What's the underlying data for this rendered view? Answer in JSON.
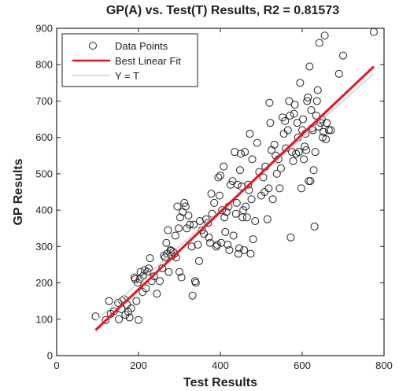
{
  "chart_data": {
    "type": "scatter",
    "title": "GP(A) vs. Test(T) Results, R2 = 0.81573",
    "xlabel": "Test Results",
    "ylabel": "GP Results",
    "xlim": [
      0,
      800
    ],
    "ylim": [
      0,
      900
    ],
    "xticks": [
      "0",
      "200",
      "400",
      "600",
      "800"
    ],
    "yticks": [
      "0",
      "100",
      "200",
      "300",
      "400",
      "500",
      "600",
      "700",
      "800",
      "900"
    ],
    "grid": false,
    "legend_position": "top-left",
    "series": [
      {
        "name": "Data Points",
        "kind": "points",
        "marker": "open-circle",
        "color": "#222222",
        "points": [
          [
            95,
            108
          ],
          [
            120,
            98
          ],
          [
            128,
            150
          ],
          [
            132,
            115
          ],
          [
            140,
            122
          ],
          [
            150,
            145
          ],
          [
            152,
            100
          ],
          [
            158,
            128
          ],
          [
            160,
            150
          ],
          [
            165,
            155
          ],
          [
            168,
            112
          ],
          [
            172,
            140
          ],
          [
            175,
            120
          ],
          [
            178,
            105
          ],
          [
            182,
            130
          ],
          [
            190,
            215
          ],
          [
            192,
            210
          ],
          [
            195,
            150
          ],
          [
            198,
            200
          ],
          [
            200,
            98
          ],
          [
            203,
            210
          ],
          [
            205,
            230
          ],
          [
            210,
            175
          ],
          [
            212,
            220
          ],
          [
            215,
            235
          ],
          [
            218,
            185
          ],
          [
            222,
            230
          ],
          [
            225,
            240
          ],
          [
            228,
            268
          ],
          [
            232,
            205
          ],
          [
            238,
            218
          ],
          [
            245,
            170
          ],
          [
            252,
            205
          ],
          [
            258,
            240
          ],
          [
            262,
            275
          ],
          [
            265,
            270
          ],
          [
            268,
            310
          ],
          [
            270,
            280
          ],
          [
            272,
            345
          ],
          [
            274,
            230
          ],
          [
            278,
            290
          ],
          [
            280,
            288
          ],
          [
            282,
            275
          ],
          [
            285,
            285
          ],
          [
            288,
            280
          ],
          [
            290,
            330
          ],
          [
            292,
            270
          ],
          [
            295,
            410
          ],
          [
            298,
            350
          ],
          [
            300,
            230
          ],
          [
            302,
            380
          ],
          [
            305,
            215
          ],
          [
            308,
            395
          ],
          [
            312,
            420
          ],
          [
            315,
            410
          ],
          [
            318,
            350
          ],
          [
            322,
            385
          ],
          [
            325,
            360
          ],
          [
            330,
            300
          ],
          [
            332,
            165
          ],
          [
            335,
            360
          ],
          [
            338,
            205
          ],
          [
            340,
            200
          ],
          [
            345,
            305
          ],
          [
            348,
            260
          ],
          [
            350,
            370
          ],
          [
            355,
            345
          ],
          [
            360,
            335
          ],
          [
            365,
            375
          ],
          [
            370,
            365
          ],
          [
            372,
            325
          ],
          [
            375,
            310
          ],
          [
            378,
            445
          ],
          [
            380,
            390
          ],
          [
            385,
            420
          ],
          [
            390,
            300
          ],
          [
            392,
            305
          ],
          [
            395,
            490
          ],
          [
            398,
            440
          ],
          [
            400,
            495
          ],
          [
            402,
            310
          ],
          [
            404,
            400
          ],
          [
            408,
            520
          ],
          [
            410,
            380
          ],
          [
            412,
            340
          ],
          [
            415,
            395
          ],
          [
            418,
            305
          ],
          [
            420,
            410
          ],
          [
            422,
            290
          ],
          [
            425,
            470
          ],
          [
            430,
            480
          ],
          [
            432,
            330
          ],
          [
            435,
            560
          ],
          [
            438,
            390
          ],
          [
            440,
            420
          ],
          [
            442,
            470
          ],
          [
            444,
            280
          ],
          [
            446,
            295
          ],
          [
            448,
            510
          ],
          [
            450,
            555
          ],
          [
            452,
            465
          ],
          [
            454,
            380
          ],
          [
            456,
            400
          ],
          [
            458,
            290
          ],
          [
            460,
            560
          ],
          [
            462,
            410
          ],
          [
            465,
            380
          ],
          [
            468,
            470
          ],
          [
            470,
            455
          ],
          [
            472,
            610
          ],
          [
            474,
            280
          ],
          [
            476,
            430
          ],
          [
            478,
            540
          ],
          [
            480,
            320
          ],
          [
            485,
            370
          ],
          [
            490,
            585
          ],
          [
            495,
            505
          ],
          [
            500,
            440
          ],
          [
            505,
            490
          ],
          [
            508,
            450
          ],
          [
            510,
            520
          ],
          [
            515,
            375
          ],
          [
            518,
            460
          ],
          [
            520,
            695
          ],
          [
            522,
            640
          ],
          [
            525,
            565
          ],
          [
            528,
            430
          ],
          [
            532,
            580
          ],
          [
            535,
            550
          ],
          [
            538,
            500
          ],
          [
            542,
            540
          ],
          [
            545,
            460
          ],
          [
            548,
            515
          ],
          [
            552,
            655
          ],
          [
            555,
            610
          ],
          [
            558,
            645
          ],
          [
            560,
            570
          ],
          [
            565,
            620
          ],
          [
            568,
            700
          ],
          [
            570,
            660
          ],
          [
            572,
            325
          ],
          [
            575,
            560
          ],
          [
            578,
            535
          ],
          [
            580,
            665
          ],
          [
            582,
            690
          ],
          [
            585,
            555
          ],
          [
            588,
            640
          ],
          [
            590,
            600
          ],
          [
            592,
            560
          ],
          [
            595,
            750
          ],
          [
            598,
            460
          ],
          [
            600,
            620
          ],
          [
            602,
            650
          ],
          [
            604,
            540
          ],
          [
            606,
            575
          ],
          [
            608,
            610
          ],
          [
            610,
            565
          ],
          [
            612,
            700
          ],
          [
            614,
            710
          ],
          [
            616,
            480
          ],
          [
            618,
            795
          ],
          [
            620,
            480
          ],
          [
            622,
            675
          ],
          [
            624,
            625
          ],
          [
            626,
            620
          ],
          [
            628,
            510
          ],
          [
            630,
            355
          ],
          [
            632,
            560
          ],
          [
            634,
            660
          ],
          [
            636,
            700
          ],
          [
            638,
            730
          ],
          [
            640,
            630
          ],
          [
            642,
            860
          ],
          [
            645,
            640
          ],
          [
            648,
            650
          ],
          [
            650,
            600
          ],
          [
            652,
            615
          ],
          [
            655,
            880
          ],
          [
            658,
            595
          ],
          [
            660,
            640
          ],
          [
            665,
            620
          ],
          [
            670,
            620
          ],
          [
            690,
            775
          ],
          [
            700,
            825
          ],
          [
            775,
            890
          ]
        ]
      },
      {
        "name": "Best Linear Fit",
        "kind": "line",
        "color": "#e8161b",
        "points": [
          [
            95,
            70
          ],
          [
            775,
            795
          ]
        ]
      },
      {
        "name": "Y = T",
        "kind": "line",
        "color": "#c8c8c8",
        "points": [
          [
            95,
            95
          ],
          [
            775,
            775
          ]
        ]
      }
    ]
  }
}
